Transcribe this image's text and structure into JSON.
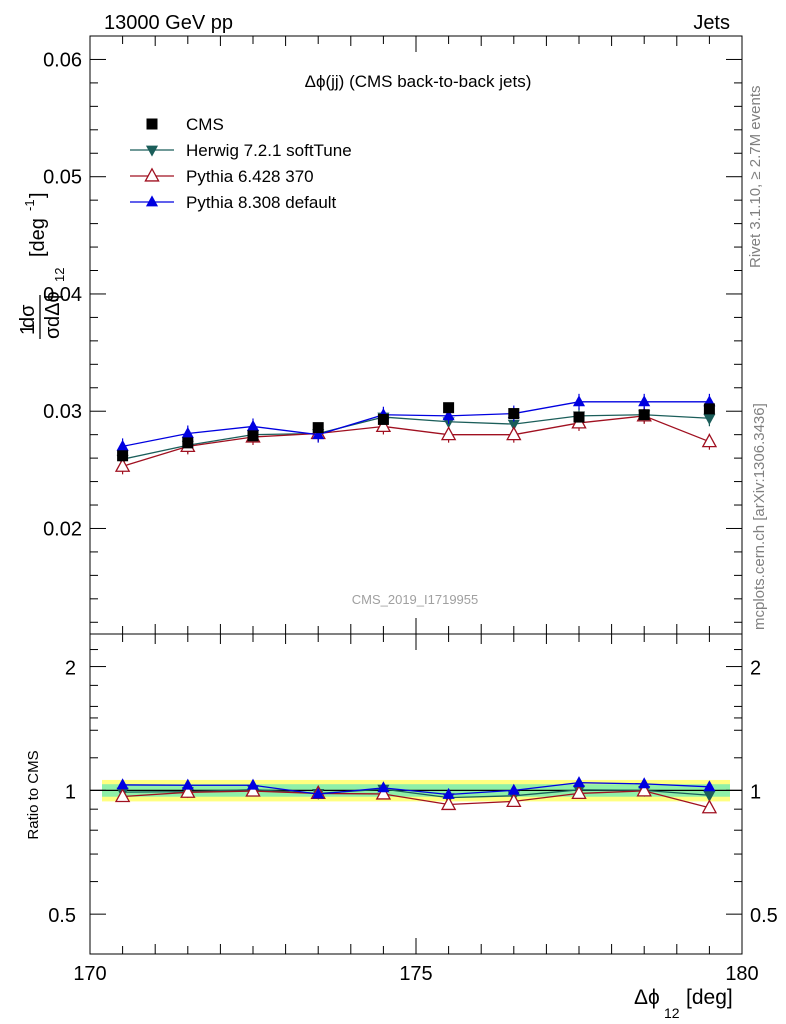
{
  "header": {
    "left": "13000 GeV pp",
    "right": "Jets"
  },
  "side_labels": {
    "rivet": "Rivet 3.1.10, ≥ 2.7M events",
    "source": "mcplots.cern.ch [arXiv:1306.3436]"
  },
  "chart_data": [
    {
      "type": "scatter",
      "title": "Δϕ(jj) (CMS back-to-back jets)",
      "watermark": "CMS_2019_I1719955",
      "xlabel": "Δϕ",
      "xlabel_sub": "12",
      "xlabel_unit": "[deg]",
      "ylabel": "1/σ dσ/dΔϕ_12 [deg^-1]",
      "xlim": [
        170,
        180
      ],
      "ylim": [
        0.011,
        0.062
      ],
      "x_ticks": [
        "170",
        "175",
        "180"
      ],
      "y_ticks": [
        "0.02",
        "0.03",
        "0.04",
        "0.05",
        "0.06"
      ],
      "y_tick_values": [
        0.02,
        0.03,
        0.04,
        0.05,
        0.06
      ],
      "legend_position": "top-left",
      "x": [
        170.5,
        171.5,
        172.5,
        173.5,
        174.5,
        175.5,
        176.5,
        177.5,
        178.5,
        179.5
      ],
      "series": [
        {
          "name": "CMS",
          "color": "#000000",
          "marker": "square",
          "values": [
            0.0262,
            0.0273,
            0.0279,
            0.0286,
            0.0293,
            0.0303,
            0.0298,
            0.0295,
            0.0297,
            0.0302
          ]
        },
        {
          "name": "Herwig 7.2.1 softTune",
          "color": "#1b5e5a",
          "marker": "triangle-down",
          "values": [
            0.0259,
            0.0271,
            0.028,
            0.0281,
            0.0295,
            0.0291,
            0.0289,
            0.0296,
            0.0297,
            0.0294
          ]
        },
        {
          "name": "Pythia 6.428 370",
          "color": "#a01020",
          "marker": "triangle-open",
          "values": [
            0.0253,
            0.027,
            0.0278,
            0.0281,
            0.0287,
            0.028,
            0.028,
            0.029,
            0.0296,
            0.0274
          ]
        },
        {
          "name": "Pythia 8.308 default",
          "color": "#0000e0",
          "marker": "triangle-up",
          "values": [
            0.027,
            0.0281,
            0.0287,
            0.028,
            0.0297,
            0.0296,
            0.0298,
            0.0308,
            0.0308,
            0.0308
          ]
        }
      ]
    },
    {
      "type": "line",
      "ylabel": "Ratio to CMS",
      "xlim": [
        170,
        180
      ],
      "ylim": [
        0.4,
        2.4
      ],
      "y_scale": "log",
      "y_ticks": [
        "0.5",
        "1",
        "2"
      ],
      "y_tick_values": [
        0.5,
        1,
        2
      ],
      "band_colors": {
        "outer": "#ffff80",
        "inner": "#8ff0a8"
      },
      "band_outer_halfwidth": 0.06,
      "band_inner_halfwidth": 0.035,
      "x": [
        170.5,
        171.5,
        172.5,
        173.5,
        174.5,
        175.5,
        176.5,
        177.5,
        178.5,
        179.5
      ],
      "series": [
        {
          "name": "Herwig 7.2.1 softTune",
          "color": "#1b5e5a",
          "marker": "triangle-down",
          "values": [
            0.99,
            0.993,
            1.004,
            0.983,
            1.007,
            0.96,
            0.97,
            1.003,
            1.0,
            0.973
          ]
        },
        {
          "name": "Pythia 6.428 370",
          "color": "#a01020",
          "marker": "triangle-open",
          "values": [
            0.966,
            0.989,
            0.996,
            0.983,
            0.98,
            0.924,
            0.94,
            0.983,
            0.997,
            0.907
          ]
        },
        {
          "name": "Pythia 8.308 default",
          "color": "#0000e0",
          "marker": "triangle-up",
          "values": [
            1.031,
            1.029,
            1.029,
            0.979,
            1.014,
            0.977,
            1.0,
            1.044,
            1.037,
            1.02
          ]
        }
      ]
    }
  ]
}
